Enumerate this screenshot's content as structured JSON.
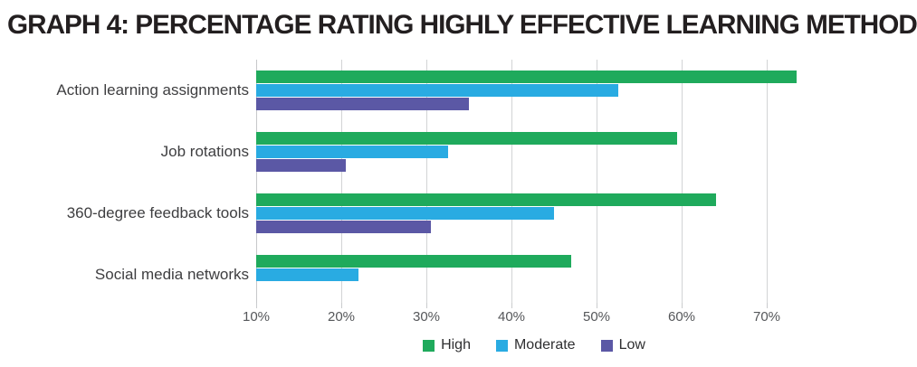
{
  "title": "GRAPH 4: PERCENTAGE RATING HIGHLY EFFECTIVE LEARNING METHOD",
  "chart_data": {
    "type": "bar",
    "orientation": "horizontal",
    "title": "GRAPH 4: PERCENTAGE RATING HIGHLY EFFECTIVE LEARNING METHOD",
    "categories": [
      "Action learning assignments",
      "Job rotations",
      "360-degree feedback tools",
      "Social media networks"
    ],
    "series": [
      {
        "name": "High",
        "color": "#1faa5c",
        "values": [
          73.5,
          59.5,
          64,
          47
        ]
      },
      {
        "name": "Moderate",
        "color": "#29abe2",
        "values": [
          52.5,
          32.5,
          45,
          22
        ]
      },
      {
        "name": "Low",
        "color": "#5b58a5",
        "values": [
          35,
          20.5,
          30.5,
          null
        ]
      }
    ],
    "x_axis": {
      "unit": "%",
      "min": 10,
      "max": 80,
      "tick_values": [
        10,
        20,
        30,
        40,
        50,
        60,
        70
      ],
      "tick_labels": [
        "10%",
        "20%",
        "30%",
        "40%",
        "50%",
        "60%",
        "70%"
      ]
    },
    "legend_position": "bottom-center",
    "grid": "vertical",
    "note_bars_start_at": 10
  },
  "colors": {
    "background": "#ffffff",
    "title_text": "#231f20",
    "category_text": "#3e3e40",
    "tick_text": "#55575a",
    "legend_text": "#2f2f31",
    "gridline": "#d2d4d5",
    "axis_line": "#c6c8ca",
    "series_high": "#1faa5c",
    "series_moderate": "#29abe2",
    "series_low": "#5b58a5"
  }
}
